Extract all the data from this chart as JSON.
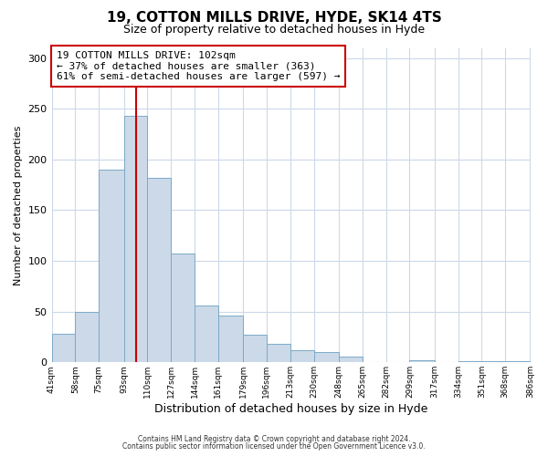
{
  "title": "19, COTTON MILLS DRIVE, HYDE, SK14 4TS",
  "subtitle": "Size of property relative to detached houses in Hyde",
  "xlabel": "Distribution of detached houses by size in Hyde",
  "ylabel": "Number of detached properties",
  "bar_color": "#ccd9e8",
  "bar_edge_color": "#7aaac8",
  "bins": [
    41,
    58,
    75,
    93,
    110,
    127,
    144,
    161,
    179,
    196,
    213,
    230,
    248,
    265,
    282,
    299,
    317,
    334,
    351,
    368,
    386
  ],
  "values": [
    28,
    50,
    190,
    243,
    182,
    107,
    56,
    46,
    27,
    18,
    12,
    10,
    6,
    0,
    0,
    2,
    0,
    1,
    1,
    1
  ],
  "vline_x": 102,
  "vline_color": "#cc0000",
  "annotation_text": "19 COTTON MILLS DRIVE: 102sqm\n← 37% of detached houses are smaller (363)\n61% of semi-detached houses are larger (597) →",
  "annotation_box_color": "#ffffff",
  "annotation_box_edge_color": "#cc0000",
  "ylim": [
    0,
    310
  ],
  "footnote1": "Contains HM Land Registry data © Crown copyright and database right 2024.",
  "footnote2": "Contains public sector information licensed under the Open Government Licence v3.0.",
  "background_color": "#ffffff",
  "plot_bg_color": "#ffffff",
  "grid_color": "#ccd9e8",
  "tick_labels": [
    "41sqm",
    "58sqm",
    "75sqm",
    "93sqm",
    "110sqm",
    "127sqm",
    "144sqm",
    "161sqm",
    "179sqm",
    "196sqm",
    "213sqm",
    "230sqm",
    "248sqm",
    "265sqm",
    "282sqm",
    "299sqm",
    "317sqm",
    "334sqm",
    "351sqm",
    "368sqm",
    "386sqm"
  ],
  "title_fontsize": 11,
  "subtitle_fontsize": 9,
  "ylabel_fontsize": 8,
  "xlabel_fontsize": 9
}
